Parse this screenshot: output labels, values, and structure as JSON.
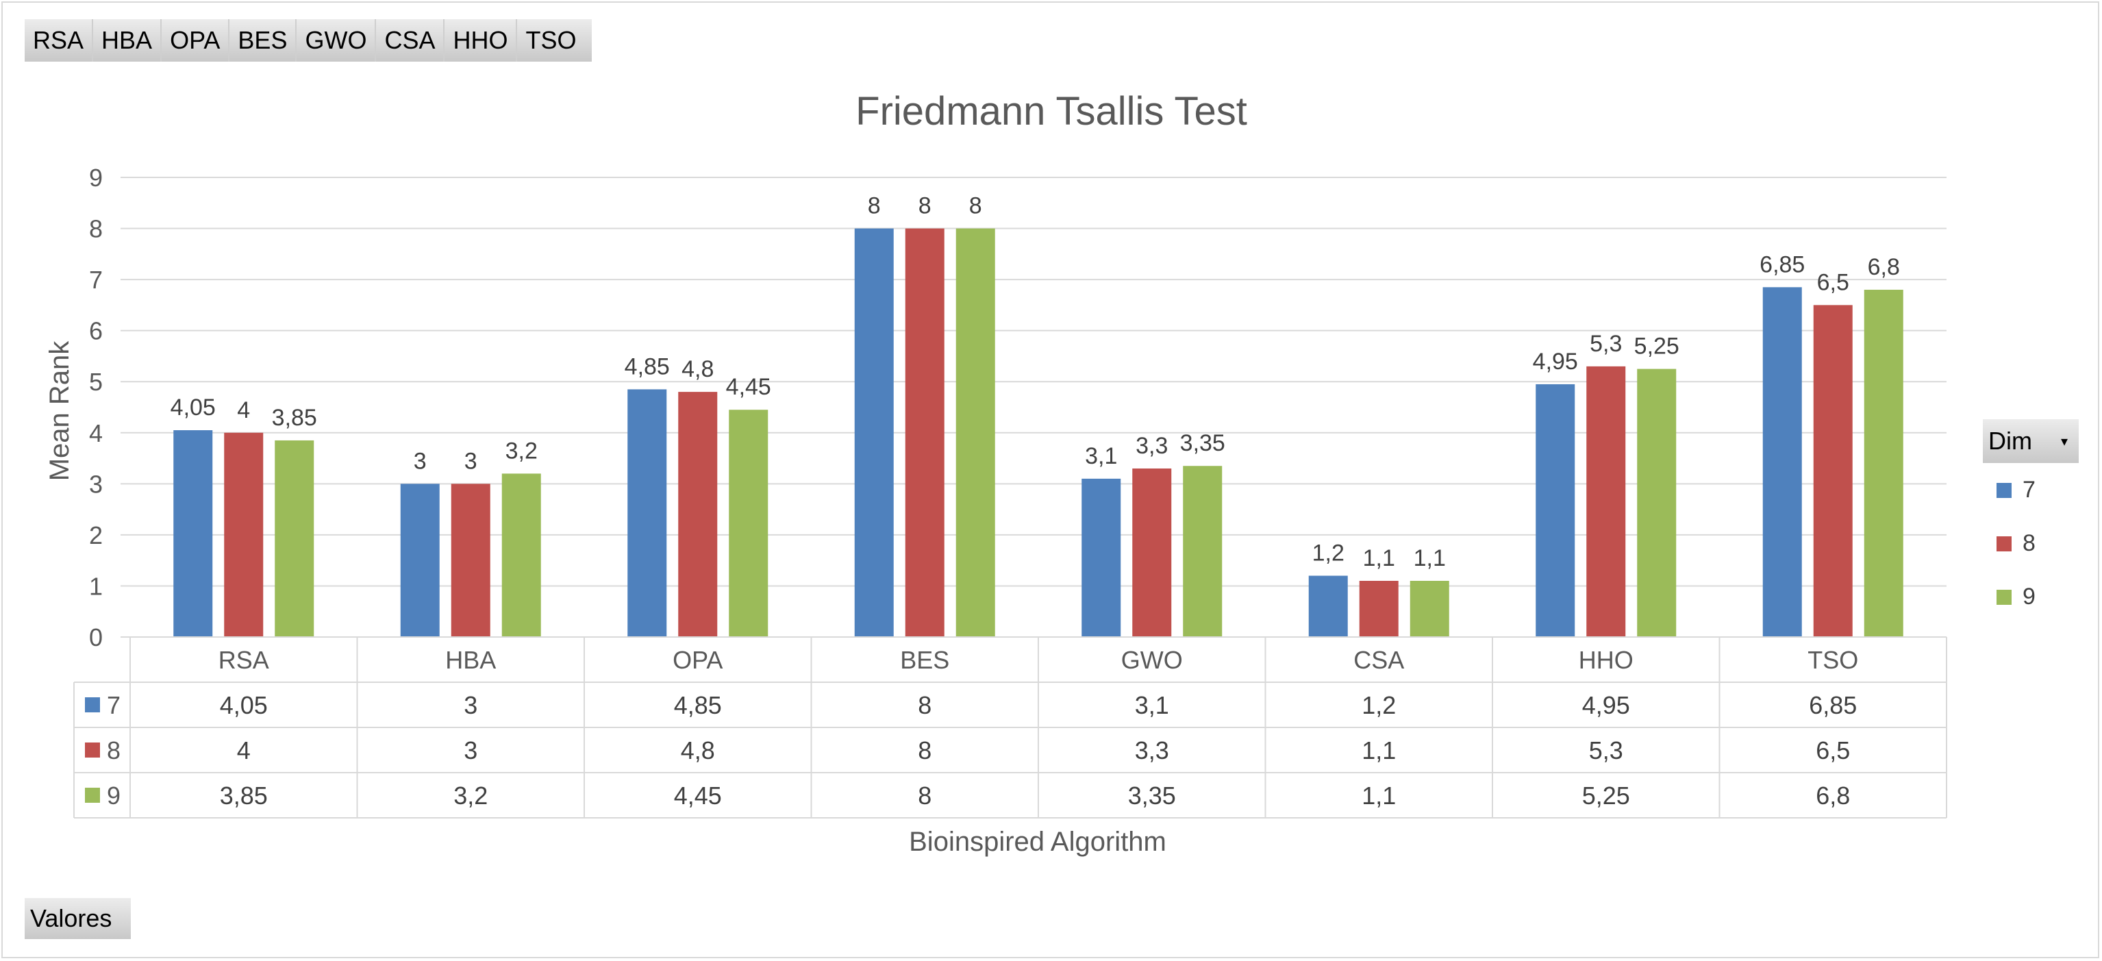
{
  "filter_fields": [
    "RSA",
    "HBA",
    "OPA",
    "BES",
    "GWO",
    "CSA",
    "HHO",
    "TSO"
  ],
  "values_button": "Valores",
  "legend": {
    "title": "Dim",
    "position": "right",
    "items": [
      {
        "label": "7",
        "color": "#4F81BD"
      },
      {
        "label": "8",
        "color": "#C0504D"
      },
      {
        "label": "9",
        "color": "#9BBB59"
      }
    ]
  },
  "chart_data": {
    "type": "bar",
    "title": "Friedmann Tsallis Test",
    "xlabel": "Bioinspired Algorithm",
    "ylabel": "Mean Rank",
    "ylim": [
      0,
      9
    ],
    "yticks": [
      "0",
      "1",
      "2",
      "3",
      "4",
      "5",
      "6",
      "7",
      "8",
      "9"
    ],
    "grid": true,
    "categories": [
      "RSA",
      "HBA",
      "OPA",
      "BES",
      "GWO",
      "CSA",
      "HHO",
      "TSO"
    ],
    "series": [
      {
        "name": "7",
        "color": "#4F81BD",
        "values": [
          4.05,
          3,
          4.85,
          8,
          3.1,
          1.2,
          4.95,
          6.85
        ],
        "labels": [
          "4,05",
          "3",
          "4,85",
          "8",
          "3,1",
          "1,2",
          "4,95",
          "6,85"
        ]
      },
      {
        "name": "8",
        "color": "#C0504D",
        "values": [
          4,
          3,
          4.8,
          8,
          3.3,
          1.1,
          5.3,
          6.5
        ],
        "labels": [
          "4",
          "3",
          "4,8",
          "8",
          "3,3",
          "1,1",
          "5,3",
          "6,5"
        ]
      },
      {
        "name": "9",
        "color": "#9BBB59",
        "values": [
          3.85,
          3.2,
          4.45,
          8,
          3.35,
          1.1,
          5.25,
          6.8
        ],
        "labels": [
          "3,85",
          "3,2",
          "4,45",
          "8",
          "3,35",
          "1,1",
          "5,25",
          "6,8"
        ]
      }
    ]
  }
}
